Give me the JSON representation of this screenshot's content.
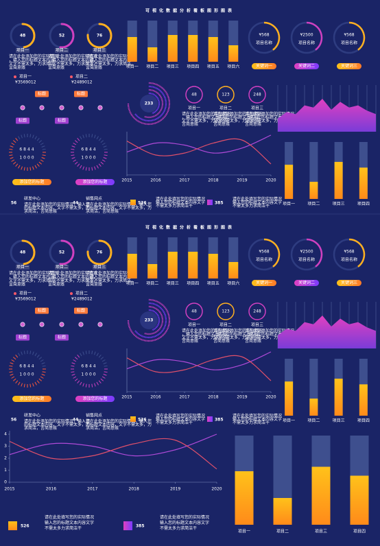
{
  "title": "可视化数据分析看板图形图表",
  "rings": [
    {
      "value": 48,
      "label": "项目一"
    },
    {
      "value": 52,
      "label": "项目二"
    },
    {
      "value": 76,
      "label": "项目三"
    }
  ],
  "desc": "请在此处添加您的实际情况，输入您的标题文本内容，文字不需太多，力求简洁，言简意赅",
  "items": [
    {
      "label": "项目一",
      "value": "¥3569012"
    },
    {
      "label": "项目二",
      "value": "¥2489012"
    }
  ],
  "timeline": [
    "标题",
    "标题",
    "标题",
    "标题"
  ],
  "gauges": [
    {
      "top": 6844,
      "bottom": 1000
    },
    {
      "top": 6844,
      "bottom": 1000
    }
  ],
  "buttons": [
    "添加您的标题",
    "添加您的标题"
  ],
  "stats_left": [
    {
      "value": 56,
      "label": "研发中心"
    },
    {
      "value": 44,
      "label": "销售网点"
    }
  ],
  "price_rings": [
    {
      "value": "¥568",
      "label": "项目名称",
      "button": "关键词一"
    },
    {
      "value": "¥2500",
      "label": "项目名称",
      "button": "关键词二"
    },
    {
      "value": "¥568",
      "label": "项目名称",
      "button": "关键词三"
    }
  ],
  "center_ring": 233,
  "circles": [
    {
      "value": 48,
      "label": "项目一"
    },
    {
      "value": 123,
      "label": "项目二"
    },
    {
      "value": 248,
      "label": "项目三"
    }
  ],
  "stats_bottom": [
    {
      "value": 526,
      "desc": "请在此处填写您的实际情况输入您的标题文本内容文字不需太多力求简洁干"
    },
    {
      "value": 385,
      "desc": "请在此处填写您的实际情况输入您的标题文本内容文字不需太多力求简洁干"
    }
  ],
  "chart_data": [
    {
      "type": "bar",
      "categories": [
        "项目一",
        "项目二",
        "项目三",
        "项目四",
        "项目五",
        "项目六"
      ],
      "values": [
        60,
        35,
        65,
        65,
        60,
        40
      ],
      "ylim": [
        0,
        100
      ],
      "color": "#ffb020"
    },
    {
      "type": "area",
      "categories": [
        null,
        null,
        null,
        null,
        null,
        null,
        null,
        null,
        null,
        null,
        null,
        null
      ],
      "values": [
        30,
        45,
        40,
        60,
        55,
        75,
        50,
        68,
        55,
        60,
        48,
        40
      ],
      "ylim": [
        0,
        100
      ],
      "color": "#d040c0"
    },
    {
      "type": "line",
      "x": [
        2015,
        2016,
        2017,
        2018,
        2019,
        2020
      ],
      "xlim": [
        2015,
        2020
      ],
      "xticks": [
        2015,
        2016,
        2017,
        2018,
        2019,
        2020
      ],
      "ylim": [
        0,
        4
      ],
      "yticks": [
        0,
        1,
        2,
        3,
        4
      ],
      "series": [
        {
          "color": "#b04ad8",
          "values": [
            2.3,
            3.2,
            3.0,
            2.2,
            2.7,
            4.0
          ]
        },
        {
          "color": "#e0506a",
          "values": [
            3.4,
            2.0,
            2.2,
            3.2,
            3.5,
            1.1
          ]
        }
      ]
    },
    {
      "type": "bar",
      "categories": [
        "项目一",
        "项目二",
        "项目三",
        "项目四"
      ],
      "values": [
        60,
        30,
        65,
        55
      ],
      "ylim": [
        0,
        100
      ],
      "color": "#ffb020"
    }
  ]
}
